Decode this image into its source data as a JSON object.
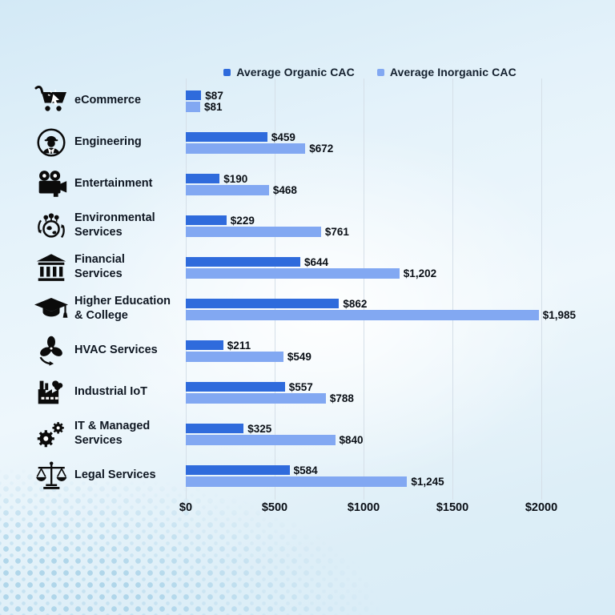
{
  "legend": {
    "items": [
      {
        "label": "Average Organic CAC",
        "color": "#2F6BDC",
        "swatch_icon": "legend-square-organic-icon"
      },
      {
        "label": "Average Inorganic CAC",
        "color": "#82A8F2",
        "swatch_icon": "legend-square-inorganic-icon"
      }
    ]
  },
  "chart_data": {
    "type": "bar",
    "orientation": "horizontal",
    "title": "",
    "xlabel": "",
    "ylabel": "",
    "xlim": [
      0,
      2000
    ],
    "xticks": [
      "$0",
      "$500",
      "$1000",
      "$1500",
      "$2000"
    ],
    "xtick_values": [
      0,
      500,
      1000,
      1500,
      2000
    ],
    "grid": true,
    "legend_position": "top",
    "categories": [
      "eCommerce",
      "Engineering",
      "Entertainment",
      "Environmental Services",
      "Financial Services",
      "Higher Education & College",
      "HVAC Services",
      "Industrial IoT",
      "IT & Managed Services",
      "Legal Services"
    ],
    "series": [
      {
        "name": "Average Organic CAC",
        "color": "#2F6BDC",
        "values": [
          87,
          459,
          190,
          229,
          644,
          862,
          211,
          557,
          325,
          584
        ],
        "labels": [
          "$87",
          "$459",
          "$190",
          "$229",
          "$644",
          "$862",
          "$211",
          "$557",
          "$325",
          "$584"
        ]
      },
      {
        "name": "Average Inorganic CAC",
        "color": "#82A8F2",
        "values": [
          81,
          672,
          468,
          761,
          1202,
          1985,
          549,
          788,
          840,
          1245
        ],
        "labels": [
          "$81",
          "$672",
          "$468",
          "$761",
          "$1,202",
          "$1,985",
          "$549",
          "$788",
          "$840",
          "$1,245"
        ]
      }
    ]
  },
  "rows": [
    {
      "line1": "eCommerce",
      "line2": "",
      "icon": "shopping-cart-icon"
    },
    {
      "line1": "Engineering",
      "line2": "",
      "icon": "engineer-icon"
    },
    {
      "line1": "Entertainment",
      "line2": "",
      "icon": "movie-camera-icon"
    },
    {
      "line1": "Environmental",
      "line2": "Services",
      "icon": "eco-globe-icon"
    },
    {
      "line1": "Financial",
      "line2": "Services",
      "icon": "bank-icon"
    },
    {
      "line1": "Higher Education",
      "line2": "& College",
      "icon": "graduation-cap-icon"
    },
    {
      "line1": "HVAC Services",
      "line2": "",
      "icon": "fan-icon"
    },
    {
      "line1": "Industrial IoT",
      "line2": "",
      "icon": "factory-icon"
    },
    {
      "line1": "IT & Managed",
      "line2": "Services",
      "icon": "gears-icon"
    },
    {
      "line1": "Legal Services",
      "line2": "",
      "icon": "scales-icon"
    }
  ]
}
